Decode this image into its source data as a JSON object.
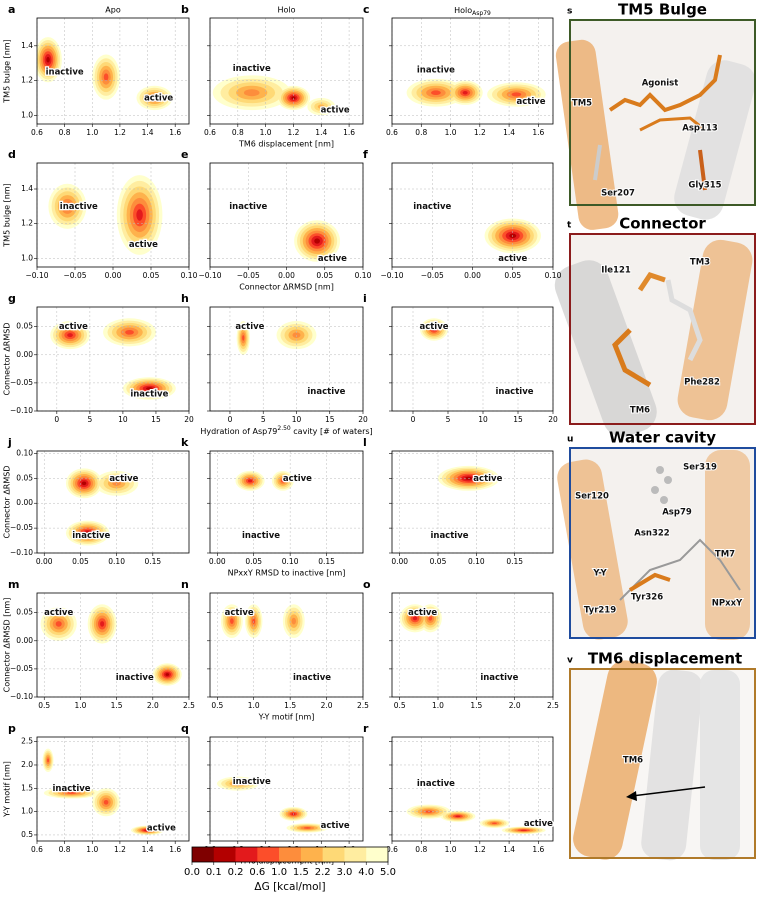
{
  "chart_data": {
    "type": "contour",
    "column_titles": [
      "Apo",
      "Holo",
      {
        "text": "Holo",
        "sub": "Asp79"
      }
    ],
    "rows": [
      {
        "ylabel": "TM5 bulge [nm]",
        "xlabel": "TM6 displacement [nm]",
        "xlim": [
          0.6,
          1.7
        ],
        "ylim": [
          0.95,
          1.56
        ],
        "xticks": [
          0.6,
          0.8,
          {
            "value": 1.0,
            "label": "1.0"
          },
          1.2,
          1.4,
          1.6
        ],
        "yticks": [
          {
            "value": 1.0,
            "label": "1.0"
          },
          1.2,
          1.4
        ],
        "panels": [
          {
            "letter": "a",
            "blobs": [
              [
                0.68,
                1.32,
                0.1,
                0.13,
                0.1
              ],
              [
                1.1,
                1.22,
                0.1,
                0.13,
                0.6
              ],
              [
                1.45,
                1.1,
                0.13,
                0.07,
                0.6
              ]
            ],
            "labels": [
              {
                "text": "inactive",
                "x": 0.8,
                "y": 1.25
              },
              {
                "text": "active",
                "x": 1.48,
                "y": 1.1
              }
            ]
          },
          {
            "letter": "b",
            "blobs": [
              [
                0.9,
                1.13,
                0.28,
                0.1,
                1.0
              ],
              [
                1.2,
                1.1,
                0.12,
                0.07,
                0.1
              ],
              [
                1.4,
                1.05,
                0.1,
                0.05,
                1.5
              ]
            ],
            "labels": [
              {
                "text": "inactive",
                "x": 0.9,
                "y": 1.27
              },
              {
                "text": "active",
                "x": 1.5,
                "y": 1.03
              }
            ]
          },
          {
            "letter": "c",
            "blobs": [
              [
                0.9,
                1.13,
                0.2,
                0.08,
                0.6
              ],
              [
                1.1,
                1.13,
                0.12,
                0.07,
                0.2
              ],
              [
                1.45,
                1.12,
                0.2,
                0.07,
                0.6
              ]
            ],
            "labels": [
              {
                "text": "inactive",
                "x": 0.9,
                "y": 1.26
              },
              {
                "text": "active",
                "x": 1.55,
                "y": 1.08
              }
            ]
          }
        ]
      },
      {
        "ylabel": "TM5 bulge [nm]",
        "xlabel": "Connector ΔRMSD [nm]",
        "xlim": [
          -0.1,
          0.1
        ],
        "ylim": [
          0.95,
          1.55
        ],
        "xticks": [
          {
            "value": -0.1,
            "label": "−0.10"
          },
          {
            "value": -0.05,
            "label": "−0.05"
          },
          {
            "value": 0,
            "label": "0.00"
          },
          0.05,
          {
            "value": 0.1,
            "label": "0.10"
          }
        ],
        "yticks": [
          {
            "value": 1.0,
            "label": "1.0"
          },
          1.2,
          1.4
        ],
        "panels": [
          {
            "letter": "d",
            "blobs": [
              [
                -0.06,
                1.3,
                0.025,
                0.13,
                0.6
              ],
              [
                0.035,
                1.25,
                0.03,
                0.23,
                0.2
              ]
            ],
            "labels": [
              {
                "text": "inactive",
                "x": -0.045,
                "y": 1.3
              },
              {
                "text": "active",
                "x": 0.04,
                "y": 1.08
              }
            ]
          },
          {
            "letter": "e",
            "blobs": [
              [
                0.04,
                1.1,
                0.03,
                0.12,
                0.1
              ]
            ],
            "labels": [
              {
                "text": "inactive",
                "x": -0.05,
                "y": 1.3
              },
              {
                "text": "active",
                "x": 0.06,
                "y": 1.0
              }
            ]
          },
          {
            "letter": "f",
            "blobs": [
              [
                0.05,
                1.13,
                0.035,
                0.1,
                0.1
              ]
            ],
            "labels": [
              {
                "text": "inactive",
                "x": -0.05,
                "y": 1.3
              },
              {
                "text": "active",
                "x": 0.05,
                "y": 1.0
              }
            ]
          }
        ]
      },
      {
        "ylabel": "Connector ΔRMSD",
        "xlabel": [
          "Hydration of Asp79",
          "2.50",
          " cavity [# of waters]"
        ],
        "xlim": [
          -3,
          20
        ],
        "ylim": [
          -0.1,
          0.085
        ],
        "xticks": [
          0,
          5,
          10,
          15,
          20
        ],
        "yticks": [
          {
            "value": -0.1,
            "label": "−0.10"
          },
          {
            "value": -0.05,
            "label": "−0.05"
          },
          {
            "value": 0,
            "label": "0.00"
          },
          0.05
        ],
        "panels": [
          {
            "letter": "g",
            "blobs": [
              [
                2,
                0.035,
                3,
                0.025,
                0.2
              ],
              [
                11,
                0.04,
                4,
                0.025,
                0.6
              ],
              [
                14,
                -0.06,
                4,
                0.02,
                0.1
              ]
            ],
            "labels": [
              {
                "text": "active",
                "x": 2.5,
                "y": 0.05
              },
              {
                "text": "inactive",
                "x": 14,
                "y": -0.07
              }
            ]
          },
          {
            "letter": "h",
            "blobs": [
              [
                2,
                0.03,
                1,
                0.03,
                0.6
              ],
              [
                10,
                0.035,
                3,
                0.025,
                1.0
              ]
            ],
            "labels": [
              {
                "text": "active",
                "x": 3,
                "y": 0.05
              },
              {
                "text": "inactive",
                "x": 14.5,
                "y": -0.065
              }
            ]
          },
          {
            "letter": "i",
            "blobs": [
              [
                3,
                0.045,
                2,
                0.02,
                0.2
              ]
            ],
            "labels": [
              {
                "text": "active",
                "x": 3,
                "y": 0.05
              },
              {
                "text": "inactive",
                "x": 14.5,
                "y": -0.065
              }
            ]
          }
        ]
      },
      {
        "ylabel": "Connector ΔRMSD",
        "xlabel": "NPxxY RMSD to inactive [nm]",
        "xlim": [
          -0.01,
          0.2
        ],
        "ylim": [
          -0.1,
          0.105
        ],
        "xticks": [
          {
            "value": 0,
            "label": "0.00"
          },
          0.05,
          {
            "value": 0.1,
            "label": "0.10"
          },
          0.15
        ],
        "yticks": [
          {
            "value": -0.1,
            "label": "−0.10"
          },
          {
            "value": -0.05,
            "label": "−0.05"
          },
          {
            "value": 0,
            "label": "0.00"
          },
          0.05,
          {
            "value": 0.1,
            "label": "0.10"
          }
        ],
        "panels": [
          {
            "letter": "j",
            "blobs": [
              [
                0.055,
                0.04,
                0.025,
                0.03,
                0.1
              ],
              [
                0.1,
                0.04,
                0.03,
                0.025,
                1.0
              ],
              [
                0.06,
                -0.06,
                0.03,
                0.025,
                0.1
              ]
            ],
            "labels": [
              {
                "text": "active",
                "x": 0.11,
                "y": 0.05
              },
              {
                "text": "inactive",
                "x": 0.065,
                "y": -0.065
              }
            ]
          },
          {
            "letter": "k",
            "blobs": [
              [
                0.045,
                0.045,
                0.02,
                0.02,
                0.2
              ],
              [
                0.09,
                0.045,
                0.015,
                0.02,
                0.6
              ]
            ],
            "labels": [
              {
                "text": "active",
                "x": 0.11,
                "y": 0.05
              },
              {
                "text": "inactive",
                "x": 0.06,
                "y": -0.065
              }
            ]
          },
          {
            "letter": "l",
            "blobs": [
              [
                0.09,
                0.05,
                0.04,
                0.025,
                0.1
              ]
            ],
            "labels": [
              {
                "text": "active",
                "x": 0.115,
                "y": 0.05
              },
              {
                "text": "inactive",
                "x": 0.065,
                "y": -0.065
              }
            ]
          }
        ]
      },
      {
        "ylabel": "Connector ΔRMSD [nm]",
        "xlabel": "Y-Y motif [nm]",
        "xlim": [
          0.4,
          2.5
        ],
        "ylim": [
          -0.1,
          0.085
        ],
        "xticks": [
          0.5,
          {
            "value": 1.0,
            "label": "1.0"
          },
          1.5,
          {
            "value": 2.0,
            "label": "2.0"
          },
          2.5
        ],
        "yticks": [
          {
            "value": -0.1,
            "label": "−0.10"
          },
          {
            "value": -0.05,
            "label": "−0.05"
          },
          {
            "value": 0,
            "label": "0.00"
          },
          0.05
        ],
        "panels": [
          {
            "letter": "m",
            "blobs": [
              [
                0.7,
                0.03,
                0.25,
                0.03,
                0.6
              ],
              [
                1.3,
                0.03,
                0.2,
                0.035,
                0.2
              ],
              [
                2.2,
                -0.06,
                0.2,
                0.02,
                0.1
              ]
            ],
            "labels": [
              {
                "text": "active",
                "x": 0.7,
                "y": 0.05
              },
              {
                "text": "inactive",
                "x": 1.75,
                "y": -0.065
              }
            ]
          },
          {
            "letter": "n",
            "blobs": [
              [
                0.7,
                0.035,
                0.15,
                0.03,
                0.6
              ],
              [
                1.0,
                0.035,
                0.12,
                0.03,
                0.6
              ],
              [
                1.55,
                0.035,
                0.15,
                0.03,
                1.0
              ]
            ],
            "labels": [
              {
                "text": "active",
                "x": 0.8,
                "y": 0.05
              },
              {
                "text": "inactive",
                "x": 1.8,
                "y": -0.065
              }
            ]
          },
          {
            "letter": "o",
            "blobs": [
              [
                0.7,
                0.04,
                0.2,
                0.025,
                0.2
              ],
              [
                0.9,
                0.04,
                0.15,
                0.025,
                0.6
              ]
            ],
            "labels": [
              {
                "text": "active",
                "x": 0.8,
                "y": 0.05
              },
              {
                "text": "inactive",
                "x": 1.8,
                "y": -0.065
              }
            ]
          }
        ]
      },
      {
        "ylabel": "Y-Y motif [nm]",
        "xlabel": "TM6 displacement [nm]",
        "xlim": [
          0.6,
          1.7
        ],
        "ylim": [
          0.37,
          2.6
        ],
        "xticks": [
          0.6,
          0.8,
          {
            "value": 1.0,
            "label": "1.0"
          },
          1.2,
          1.4,
          1.6
        ],
        "yticks": [
          0.5,
          {
            "value": 1.0,
            "label": "1.0"
          },
          1.5,
          {
            "value": 2.0,
            "label": "2.0"
          },
          2.5
        ],
        "panels": [
          {
            "letter": "p",
            "blobs": [
              [
                0.68,
                2.1,
                0.04,
                0.25,
                0.6
              ],
              [
                0.85,
                1.4,
                0.2,
                0.12,
                0.6
              ],
              [
                1.1,
                1.2,
                0.1,
                0.3,
                0.6
              ],
              [
                1.4,
                0.6,
                0.12,
                0.1,
                0.1
              ]
            ],
            "labels": [
              {
                "text": "inactive",
                "x": 0.85,
                "y": 1.5
              },
              {
                "text": "active",
                "x": 1.5,
                "y": 0.65
              }
            ]
          },
          {
            "letter": "q",
            "blobs": [
              [
                0.8,
                1.6,
                0.15,
                0.15,
                1.0
              ],
              [
                1.2,
                0.95,
                0.1,
                0.15,
                0.2
              ],
              [
                1.3,
                0.65,
                0.15,
                0.1,
                0.6
              ]
            ],
            "labels": [
              {
                "text": "inactive",
                "x": 0.9,
                "y": 1.65
              },
              {
                "text": "active",
                "x": 1.5,
                "y": 0.7
              }
            ]
          },
          {
            "letter": "r",
            "blobs": [
              [
                0.85,
                1.0,
                0.15,
                0.15,
                0.6
              ],
              [
                1.05,
                0.9,
                0.12,
                0.12,
                0.2
              ],
              [
                1.3,
                0.75,
                0.1,
                0.1,
                0.6
              ],
              [
                1.5,
                0.6,
                0.15,
                0.08,
                0.2
              ]
            ],
            "labels": [
              {
                "text": "inactive",
                "x": 0.9,
                "y": 1.6
              },
              {
                "text": "active",
                "x": 1.6,
                "y": 0.75
              }
            ]
          }
        ]
      }
    ],
    "colorbar": {
      "label": "ΔG [kcal/mol]",
      "ticks": [
        {
          "value": 0,
          "label": "0.0"
        },
        0.1,
        0.2,
        0.6,
        {
          "value": 1.0,
          "label": "1.0"
        },
        1.5,
        2.2,
        {
          "value": 3.0,
          "label": "3.0"
        },
        {
          "value": 4.0,
          "label": "4.0"
        },
        {
          "value": 5.0,
          "label": "5.0"
        }
      ],
      "colors": [
        "#7f0000",
        "#b30000",
        "#e31a1c",
        "#fc4e2a",
        "#fd8d3c",
        "#feb24c",
        "#fed976",
        "#ffeda0",
        "#ffffcc"
      ]
    }
  },
  "structure_panels": [
    {
      "letter": "s",
      "title": "TM5 Bulge",
      "color": "#3d5a27",
      "labels": [
        "Agonist",
        "TM5",
        "Asp113",
        "Ser207",
        "Gly315"
      ]
    },
    {
      "letter": "t",
      "title": "Connector",
      "color": "#8b1c1c",
      "labels": [
        "Ile121",
        "TM3",
        "Phe282",
        "TM6"
      ]
    },
    {
      "letter": "u",
      "title": "Water cavity",
      "color": "#1f4c9e",
      "labels": [
        "Ser319",
        "Ser120",
        "Asp79",
        "Asn322",
        "TM7",
        "Y-Y",
        "Tyr326",
        "NPxxY",
        "Tyr219"
      ]
    },
    {
      "letter": "v",
      "title": "TM6 displacement",
      "color": "#b07a2a",
      "labels": [
        "TM6"
      ]
    }
  ]
}
